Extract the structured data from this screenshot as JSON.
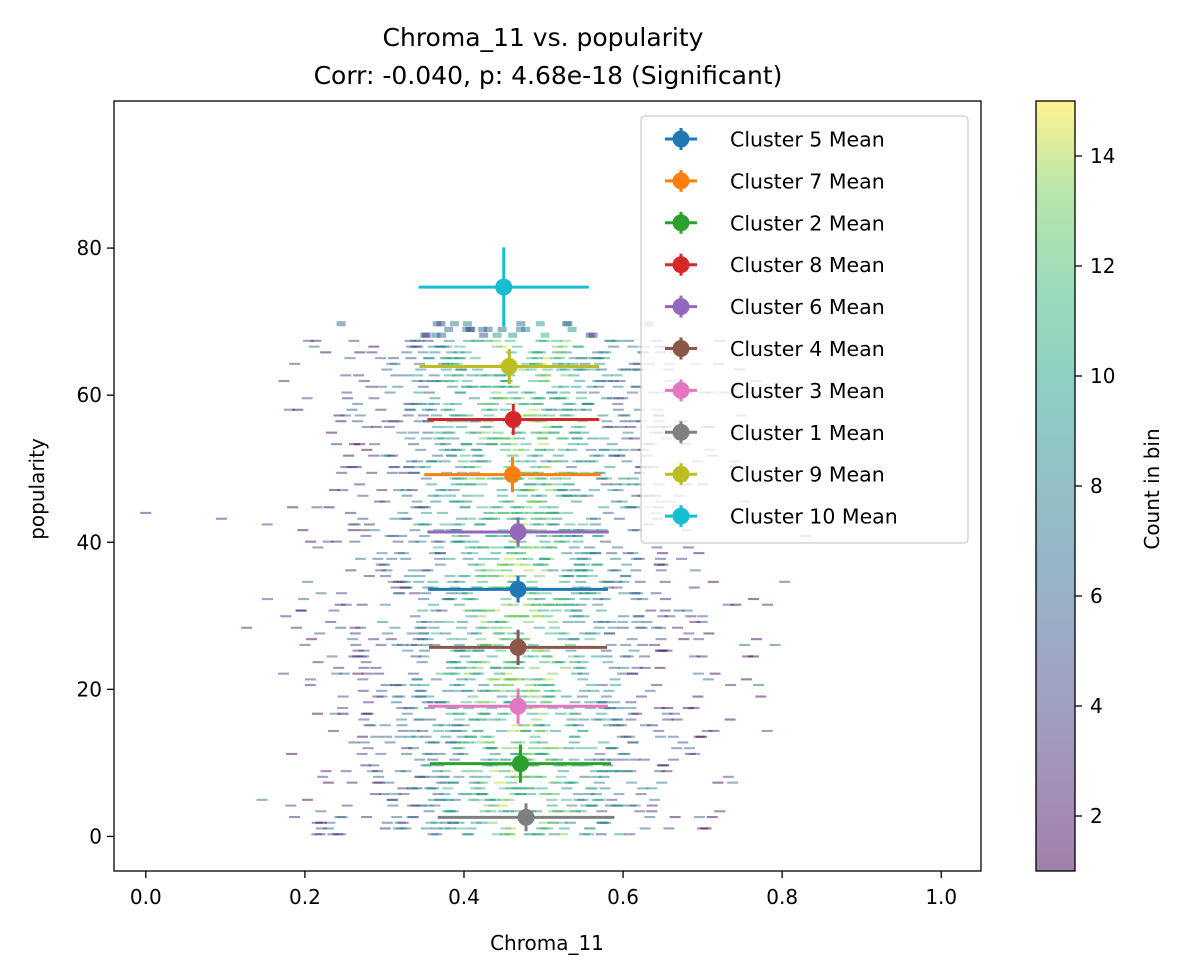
{
  "chart_data": {
    "type": "scatter",
    "title": "Chroma_11 vs. popularity",
    "subtitle": "Corr: -0.040, p: 4.68e-18 (Significant)",
    "xlabel": "Chroma_11",
    "ylabel": "popularity",
    "xlim": [
      -0.04,
      1.05
    ],
    "ylim": [
      -4.7,
      100
    ],
    "xticks": [
      "0.0",
      "0.2",
      "0.4",
      "0.6",
      "0.8",
      "1.0"
    ],
    "xtick_values": [
      0.0,
      0.2,
      0.4,
      0.6,
      0.8,
      1.0
    ],
    "yticks": [
      "0",
      "20",
      "40",
      "60",
      "80"
    ],
    "ytick_values": [
      0,
      20,
      40,
      60,
      80
    ],
    "grid": false,
    "legend_position": "top-right",
    "background": "hexbin density of individual tracks, Chroma_11 vs. popularity",
    "colorbar": {
      "label": "Count in bin",
      "min": 1,
      "max": 15,
      "ticks": [
        "2",
        "4",
        "6",
        "8",
        "10",
        "12",
        "14"
      ],
      "tick_values": [
        2,
        4,
        6,
        8,
        10,
        12,
        14
      ],
      "colormap": "viridis"
    },
    "series": [
      {
        "name": "Cluster 5 Mean",
        "color": "#1f77b4",
        "x": 0.468,
        "y": 33.6,
        "xerr": 0.113,
        "yerr": 1.8
      },
      {
        "name": "Cluster 7 Mean",
        "color": "#ff7f0e",
        "x": 0.461,
        "y": 49.2,
        "xerr": 0.111,
        "yerr": 2.4
      },
      {
        "name": "Cluster 2 Mean",
        "color": "#2ca02c",
        "x": 0.471,
        "y": 9.9,
        "xerr": 0.114,
        "yerr": 2.6
      },
      {
        "name": "Cluster 8 Mean",
        "color": "#d62728",
        "x": 0.462,
        "y": 56.7,
        "xerr": 0.108,
        "yerr": 2.1
      },
      {
        "name": "Cluster 6 Mean",
        "color": "#9467bd",
        "x": 0.468,
        "y": 41.4,
        "xerr": 0.114,
        "yerr": 2.0
      },
      {
        "name": "Cluster 4 Mean",
        "color": "#8c564b",
        "x": 0.468,
        "y": 25.7,
        "xerr": 0.112,
        "yerr": 2.4
      },
      {
        "name": "Cluster 3 Mean",
        "color": "#e377c2",
        "x": 0.468,
        "y": 17.7,
        "xerr": 0.113,
        "yerr": 2.4
      },
      {
        "name": "Cluster 1 Mean",
        "color": "#7f7f7f",
        "x": 0.478,
        "y": 2.6,
        "xerr": 0.111,
        "yerr": 1.9
      },
      {
        "name": "Cluster 9 Mean",
        "color": "#bcbd22",
        "x": 0.457,
        "y": 63.9,
        "xerr": 0.113,
        "yerr": 2.4
      },
      {
        "name": "Cluster 10 Mean",
        "color": "#17becf",
        "x": 0.45,
        "y": 74.7,
        "xerr": 0.107,
        "yerr": 5.4
      }
    ]
  }
}
